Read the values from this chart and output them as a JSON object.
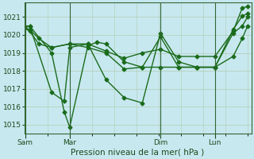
{
  "xlabel": "Pression niveau de la mer( hPa )",
  "bg_color": "#c8e8f0",
  "line_color": "#1a6b1a",
  "grid_color": "#b0ccb0",
  "ylim": [
    1014.5,
    1021.8
  ],
  "yticks": [
    1015,
    1016,
    1017,
    1018,
    1019,
    1020,
    1021
  ],
  "xlim": [
    0,
    12.5
  ],
  "xtick_positions": [
    0.05,
    2.5,
    7.5,
    10.5
  ],
  "xtick_labels": [
    "Sam",
    "Mar",
    "Dim",
    "Lun"
  ],
  "vlines": [
    0.05,
    2.5,
    7.5,
    10.5
  ],
  "line1_x": [
    0,
    0.3,
    1.5,
    2.2,
    2.5,
    3.5,
    4.0,
    4.5,
    5.5,
    6.5,
    7.5,
    8.5,
    9.5,
    10.5,
    11.5,
    12.0,
    12.3
  ],
  "line1_y": [
    1020.5,
    1020.5,
    1019.0,
    1015.7,
    1014.85,
    1019.4,
    1019.6,
    1019.5,
    1018.5,
    1018.2,
    1019.9,
    1018.2,
    1018.2,
    1018.2,
    1020.3,
    1021.05,
    1021.2
  ],
  "line2_x": [
    0,
    0.3,
    1.5,
    2.2,
    2.5,
    3.5,
    4.5,
    5.5,
    6.5,
    7.5,
    8.5,
    9.5,
    10.5,
    11.5,
    12.0,
    12.3
  ],
  "line2_y": [
    1020.5,
    1020.5,
    1016.8,
    1016.3,
    1019.3,
    1019.5,
    1017.5,
    1016.5,
    1016.2,
    1020.1,
    1018.5,
    1018.2,
    1018.2,
    1020.1,
    1020.5,
    1021.0
  ],
  "line3_x": [
    0,
    0.3,
    0.8,
    1.5,
    2.5,
    3.5,
    4.5,
    5.5,
    6.5,
    7.5,
    8.5,
    9.5,
    10.5,
    11.5,
    12.0,
    12.3
  ],
  "line3_y": [
    1020.4,
    1020.3,
    1019.8,
    1019.3,
    1019.5,
    1019.5,
    1019.1,
    1018.7,
    1019.0,
    1019.2,
    1018.8,
    1018.8,
    1018.8,
    1020.2,
    1021.5,
    1021.6
  ],
  "line4_x": [
    0,
    0.3,
    0.8,
    1.5,
    2.5,
    3.5,
    4.5,
    5.5,
    6.5,
    7.5,
    8.5,
    9.5,
    10.5,
    11.5,
    12.0,
    12.3
  ],
  "line4_y": [
    1020.4,
    1020.2,
    1019.5,
    1019.3,
    1019.5,
    1019.3,
    1019.0,
    1018.1,
    1018.2,
    1018.2,
    1018.2,
    1018.2,
    1018.2,
    1018.8,
    1019.8,
    1020.5
  ],
  "marker_size": 2.5,
  "linewidth": 1.0,
  "xlabel_fontsize": 7.5,
  "tick_fontsize": 6.5
}
